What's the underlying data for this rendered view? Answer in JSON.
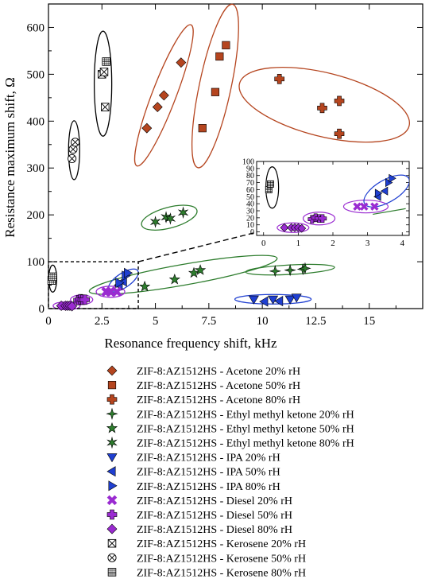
{
  "chart_data": {
    "type": "scatter",
    "title": "",
    "xlabel": "Resonance frequency shift, kHz",
    "ylabel": "Resistance maximum shift, Ω",
    "xlim": [
      0,
      17.5
    ],
    "ylim": [
      0,
      650
    ],
    "xticks": [
      "0",
      "2.5",
      "5",
      "7.5",
      "10",
      "12.5",
      "15"
    ],
    "xtick_values": [
      0,
      2.5,
      5,
      7.5,
      10,
      12.5,
      15
    ],
    "yticks": [
      "0",
      "100",
      "200",
      "300",
      "400",
      "500",
      "600"
    ],
    "ytick_values": [
      0,
      100,
      200,
      300,
      400,
      500,
      600
    ],
    "legend_position": "bottom",
    "inset": {
      "xlim": [
        -0.2,
        4.2
      ],
      "ylim": [
        -5,
        100
      ],
      "xticks": [
        "0",
        "1",
        "2",
        "3",
        "4"
      ],
      "xtick_values": [
        0,
        1,
        2,
        3,
        4
      ],
      "yticks": [
        "0",
        "10",
        "20",
        "30",
        "40",
        "50",
        "60",
        "70",
        "80",
        "90",
        "100"
      ],
      "ytick_values": [
        0,
        10,
        20,
        30,
        40,
        50,
        60,
        70,
        80,
        90,
        100
      ],
      "zoom_region": {
        "x": [
          0,
          4.2
        ],
        "y": [
          0,
          100
        ]
      }
    },
    "series": [
      {
        "name": "ZIF-8:AZ1512HS - Acetone 20% rH",
        "marker": "diamond",
        "color": "#b5451f",
        "points": [
          [
            4.6,
            385
          ],
          [
            5.1,
            430
          ],
          [
            5.4,
            455
          ],
          [
            6.2,
            525
          ]
        ]
      },
      {
        "name": "ZIF-8:AZ1512HS - Acetone 50% rH",
        "marker": "square",
        "color": "#b5451f",
        "points": [
          [
            7.2,
            385
          ],
          [
            7.8,
            462
          ],
          [
            8.0,
            538
          ],
          [
            8.3,
            562
          ]
        ]
      },
      {
        "name": "ZIF-8:AZ1512HS - Acetone 80% rH",
        "marker": "plus",
        "color": "#b5451f",
        "points": [
          [
            10.8,
            490
          ],
          [
            12.8,
            428
          ],
          [
            13.6,
            443
          ],
          [
            13.6,
            373
          ]
        ]
      },
      {
        "name": "ZIF-8:AZ1512HS - Ethyl methyl ketone 20% rH",
        "marker": "star4",
        "color": "#2e7d2e",
        "points": [
          [
            10.6,
            80
          ],
          [
            11.3,
            82
          ],
          [
            11.9,
            84
          ],
          [
            12.0,
            86
          ]
        ]
      },
      {
        "name": "ZIF-8:AZ1512HS - Ethyl methyl ketone 50% rH",
        "marker": "star5",
        "color": "#2e7d2e",
        "points": [
          [
            4.5,
            47
          ],
          [
            5.9,
            62
          ],
          [
            6.8,
            76
          ],
          [
            7.1,
            82
          ]
        ]
      },
      {
        "name": "ZIF-8:AZ1512HS - Ethyl methyl ketone 80% rH",
        "marker": "star6",
        "color": "#2e7d2e",
        "points": [
          [
            5.0,
            185
          ],
          [
            5.5,
            195
          ],
          [
            5.7,
            192
          ],
          [
            6.3,
            205
          ]
        ]
      },
      {
        "name": "ZIF-8:AZ1512HS - IPA 20% rH",
        "marker": "tri-down",
        "color": "#1f3fd1",
        "points": [
          [
            9.6,
            20
          ],
          [
            10.5,
            20
          ],
          [
            11.3,
            20
          ],
          [
            11.6,
            24
          ]
        ]
      },
      {
        "name": "ZIF-8:AZ1512HS - IPA 50% rH",
        "marker": "tri-left",
        "color": "#1f3fd1",
        "points": [
          [
            3.3,
            50
          ],
          [
            3.5,
            58
          ],
          [
            10.1,
            15
          ],
          [
            10.8,
            16
          ]
        ]
      },
      {
        "name": "ZIF-8:AZ1512HS - IPA 80% rH",
        "marker": "tri-right",
        "color": "#1f3fd1",
        "points": [
          [
            3.3,
            55
          ],
          [
            3.6,
            70
          ],
          [
            3.7,
            76
          ]
        ]
      },
      {
        "name": "ZIF-8:AZ1512HS - Diesel 20% rH",
        "marker": "x",
        "color": "#9a2bd1",
        "points": [
          [
            2.7,
            36
          ],
          [
            2.9,
            36
          ],
          [
            3.2,
            36
          ]
        ]
      },
      {
        "name": "ZIF-8:AZ1512HS - Diesel 50% rH",
        "marker": "plus",
        "color": "#9a2bd1",
        "points": [
          [
            1.4,
            18
          ],
          [
            1.5,
            20
          ],
          [
            1.6,
            19
          ],
          [
            1.7,
            19
          ]
        ]
      },
      {
        "name": "ZIF-8:AZ1512HS - Diesel 80% rH",
        "marker": "diamond",
        "color": "#9a2bd1",
        "points": [
          [
            0.6,
            6
          ],
          [
            0.8,
            6
          ],
          [
            0.9,
            6
          ],
          [
            1.0,
            6
          ],
          [
            1.1,
            5
          ]
        ]
      },
      {
        "name": "ZIF-8:AZ1512HS - Kerosene 20% rH",
        "marker": "square-x",
        "color": "#000000",
        "points": [
          [
            2.5,
            500
          ],
          [
            2.6,
            505
          ],
          [
            2.65,
            430
          ]
        ]
      },
      {
        "name": "ZIF-8:AZ1512HS - Kerosene 50% rH",
        "marker": "circle-x",
        "color": "#000000",
        "points": [
          [
            1.1,
            320
          ],
          [
            1.15,
            340
          ],
          [
            1.25,
            355
          ]
        ]
      },
      {
        "name": "ZIF-8:AZ1512HS - Kerosene 80% rH",
        "marker": "square-plus",
        "color": "#000000",
        "points": [
          [
            2.7,
            527
          ],
          [
            0.15,
            60
          ],
          [
            0.2,
            68
          ]
        ]
      }
    ],
    "ellipses": [
      {
        "cx": 5.4,
        "cy": 455,
        "rx": 95,
        "ry": 15,
        "angle": -69,
        "color": "#b5451f"
      },
      {
        "cx": 7.8,
        "cy": 475,
        "rx": 105,
        "ry": 20,
        "angle": -78,
        "color": "#b5451f"
      },
      {
        "cx": 12.9,
        "cy": 435,
        "rx": 110,
        "ry": 40,
        "angle": 14,
        "color": "#b5451f"
      },
      {
        "cx": 11.3,
        "cy": 83,
        "rx": 56,
        "ry": 6,
        "angle": -3,
        "color": "#2e7d2e"
      },
      {
        "cx": 6.3,
        "cy": 72,
        "rx": 120,
        "ry": 13,
        "angle": -10,
        "color": "#2e7d2e"
      },
      {
        "cx": 5.65,
        "cy": 194,
        "rx": 36,
        "ry": 13,
        "angle": -15,
        "color": "#2e7d2e"
      },
      {
        "cx": 10.5,
        "cy": 20,
        "rx": 48,
        "ry": 6,
        "angle": 0,
        "color": "#1f3fd1"
      },
      {
        "cx": 3.5,
        "cy": 60,
        "rx": 22,
        "ry": 9,
        "angle": -34,
        "color": "#1f3fd1"
      },
      {
        "cx": 2.9,
        "cy": 36,
        "rx": 18,
        "ry": 7,
        "angle": 0,
        "color": "#9a2bd1"
      },
      {
        "cx": 1.55,
        "cy": 19,
        "rx": 14,
        "ry": 6,
        "angle": 0,
        "color": "#9a2bd1"
      },
      {
        "cx": 0.85,
        "cy": 6,
        "rx": 17,
        "ry": 5,
        "angle": 0,
        "color": "#9a2bd1"
      },
      {
        "cx": 2.55,
        "cy": 480,
        "rx": 11,
        "ry": 66,
        "angle": 0,
        "color": "#000000"
      },
      {
        "cx": 1.2,
        "cy": 338,
        "rx": 7,
        "ry": 37,
        "angle": 0,
        "color": "#000000"
      },
      {
        "cx": 0.2,
        "cy": 64,
        "rx": 5,
        "ry": 17,
        "angle": 0,
        "color": "#000000"
      }
    ],
    "inset_ellipses": [
      {
        "cx": 0.25,
        "cy": 63,
        "rx": 8,
        "ry": 26,
        "angle": 0,
        "color": "#000000"
      },
      {
        "cx": 0.85,
        "cy": 6,
        "rx": 20,
        "ry": 6,
        "angle": 0,
        "color": "#9a2bd1"
      },
      {
        "cx": 1.6,
        "cy": 19,
        "rx": 20,
        "ry": 8,
        "angle": 0,
        "color": "#9a2bd1"
      },
      {
        "cx": 2.95,
        "cy": 36,
        "rx": 28,
        "ry": 8,
        "angle": 0,
        "color": "#9a2bd1"
      },
      {
        "cx": 3.55,
        "cy": 58,
        "rx": 32,
        "ry": 14,
        "angle": -30,
        "color": "#1f3fd1"
      }
    ],
    "inset_extra_marks": [
      {
        "type": "line",
        "x": [
          3.15,
          4.1
        ],
        "y": [
          25,
          33
        ],
        "color": "#2e7d2e"
      }
    ]
  }
}
